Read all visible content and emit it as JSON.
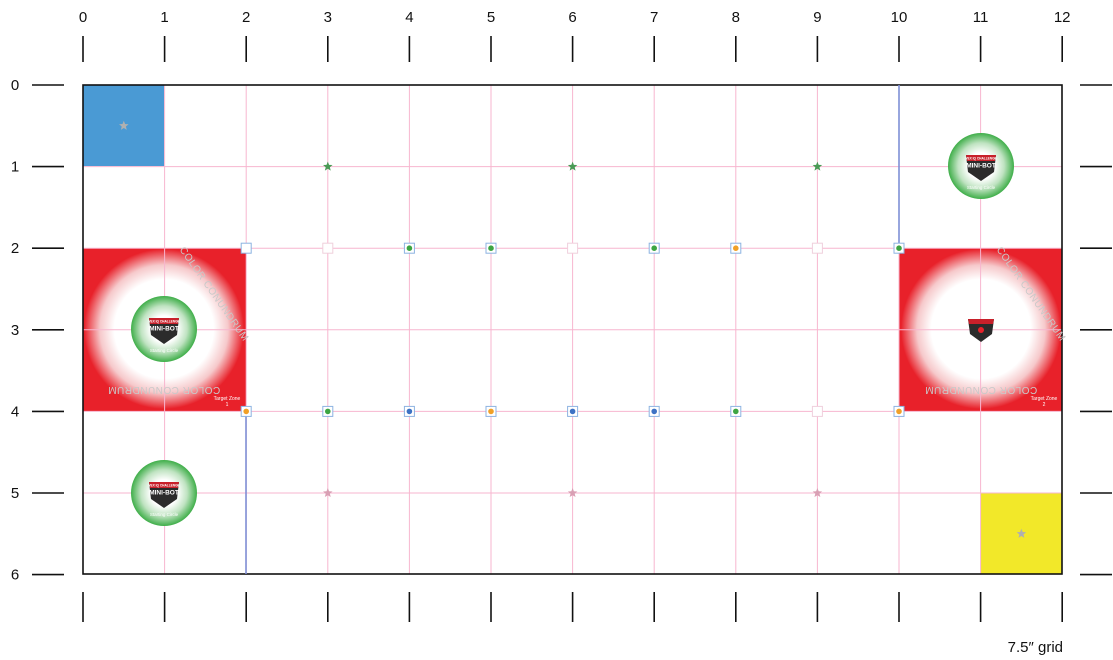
{
  "field": {
    "x_axis_ticks": [
      "0",
      "1",
      "2",
      "3",
      "4",
      "5",
      "6",
      "7",
      "8",
      "9",
      "10",
      "11",
      "12"
    ],
    "y_axis_ticks": [
      "0",
      "1",
      "2",
      "3",
      "4",
      "5",
      "6"
    ],
    "scale_note": "7.5″ grid",
    "colors": {
      "grid_line": "#f7b6cf",
      "border": "#111111",
      "blue_zone": "#4a9ad4",
      "yellow_zone": "#f2e829",
      "target_red": "#e8212a",
      "start_green": "#3fae49",
      "divider_blue": "#7f8fd6",
      "star_green": "#4a9a55",
      "star_pink": "#d9a0b4",
      "star_gray": "#b0b0b0",
      "marker_square": "#8db3e2",
      "dot_green": "#3da542",
      "dot_blue": "#3d72c4",
      "dot_orange": "#f1a027"
    },
    "blue_zone": {
      "star_icon": "star-icon"
    },
    "yellow_zone": {
      "star_icon": "star-icon"
    },
    "target_zones": [
      {
        "label_line1": "Target Zone",
        "label_line2": "1",
        "arc_text": "COLOR CONUNDRUM"
      },
      {
        "label_line1": "Target Zone",
        "label_line2": "2",
        "arc_text": "COLOR CONUNDRUM"
      }
    ],
    "starting_circles": [
      {
        "caption": "Starting Circle",
        "badge_small": "VEX IQ CHALLENGE",
        "badge_big": "MINI-BOT"
      },
      {
        "caption": "Starting Circle",
        "badge_small": "VEX IQ CHALLENGE",
        "badge_big": "MINI-BOT"
      },
      {
        "caption": "Starting Circle",
        "badge_small": "VEX IQ CHALLENGE",
        "badge_big": "MINI-BOT"
      }
    ],
    "stars": [
      {
        "gx": 3,
        "gy": 1,
        "color": "green"
      },
      {
        "gx": 6,
        "gy": 1,
        "color": "green"
      },
      {
        "gx": 9,
        "gy": 1,
        "color": "green"
      },
      {
        "gx": 3,
        "gy": 5,
        "color": "pink"
      },
      {
        "gx": 6,
        "gy": 5,
        "color": "pink"
      },
      {
        "gx": 9,
        "gy": 5,
        "color": "pink"
      },
      {
        "gx": 0.5,
        "gy": 0.5,
        "color": "gray"
      },
      {
        "gx": 11.5,
        "gy": 5.5,
        "color": "gray"
      }
    ],
    "markers": [
      {
        "gx": 2,
        "gy": 2,
        "dot": "none"
      },
      {
        "gx": 3,
        "gy": 2,
        "dot": "faint"
      },
      {
        "gx": 4,
        "gy": 2,
        "dot": "green"
      },
      {
        "gx": 5,
        "gy": 2,
        "dot": "green"
      },
      {
        "gx": 6,
        "gy": 2,
        "dot": "faint"
      },
      {
        "gx": 7,
        "gy": 2,
        "dot": "green"
      },
      {
        "gx": 8,
        "gy": 2,
        "dot": "orange"
      },
      {
        "gx": 9,
        "gy": 2,
        "dot": "faint"
      },
      {
        "gx": 10,
        "gy": 2,
        "dot": "green"
      },
      {
        "gx": 2,
        "gy": 4,
        "dot": "orange"
      },
      {
        "gx": 3,
        "gy": 4,
        "dot": "green"
      },
      {
        "gx": 4,
        "gy": 4,
        "dot": "blue"
      },
      {
        "gx": 5,
        "gy": 4,
        "dot": "orange"
      },
      {
        "gx": 6,
        "gy": 4,
        "dot": "blue"
      },
      {
        "gx": 7,
        "gy": 4,
        "dot": "blue"
      },
      {
        "gx": 8,
        "gy": 4,
        "dot": "green"
      },
      {
        "gx": 9,
        "gy": 4,
        "dot": "faint"
      },
      {
        "gx": 10,
        "gy": 4,
        "dot": "orange"
      }
    ]
  }
}
